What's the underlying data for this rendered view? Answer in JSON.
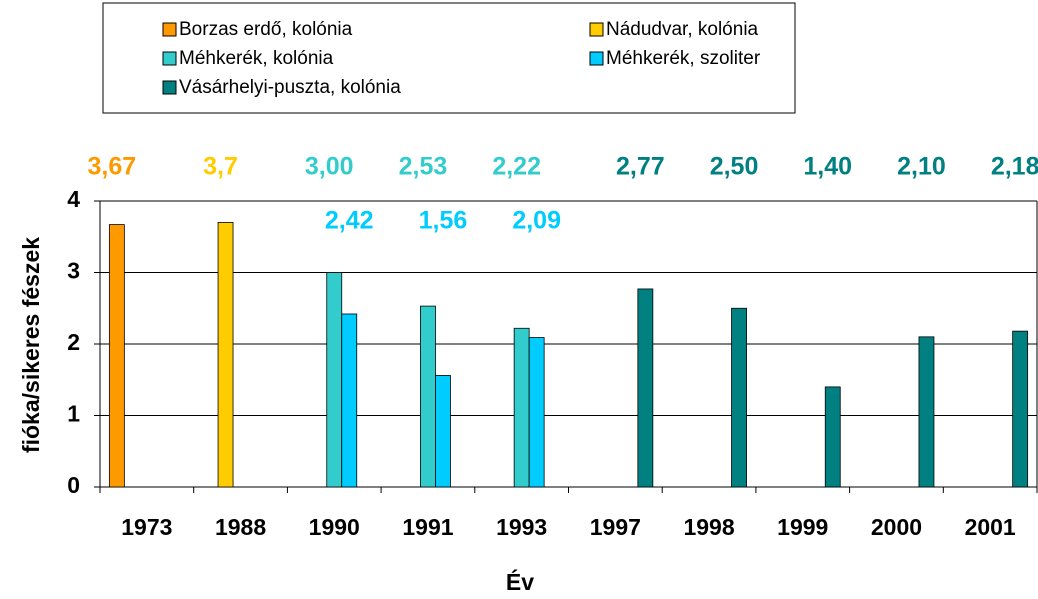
{
  "chart_data": {
    "type": "bar",
    "categories": [
      "1973",
      "1988",
      "1990",
      "1991",
      "1993",
      "1997",
      "1998",
      "1999",
      "2000",
      "2001"
    ],
    "series": [
      {
        "name": "Borzas erdő, kolónia",
        "color": "#ff9900",
        "values": [
          3.67,
          null,
          null,
          null,
          null,
          null,
          null,
          null,
          null,
          null
        ],
        "value_labels": [
          "3,67",
          null,
          null,
          null,
          null,
          null,
          null,
          null,
          null,
          null
        ]
      },
      {
        "name": "Nádudvar, kolónia",
        "color": "#ffcc00",
        "values": [
          null,
          3.7,
          null,
          null,
          null,
          null,
          null,
          null,
          null,
          null
        ],
        "value_labels": [
          null,
          "3,7",
          null,
          null,
          null,
          null,
          null,
          null,
          null,
          null
        ]
      },
      {
        "name": "Méhkerék, kolónia",
        "color": "#33cccc",
        "values": [
          null,
          null,
          3.0,
          2.53,
          2.22,
          null,
          null,
          null,
          null,
          null
        ],
        "value_labels": [
          null,
          null,
          "3,00",
          "2,53",
          "2,22",
          null,
          null,
          null,
          null,
          null
        ]
      },
      {
        "name": "Méhkerék, szoliter",
        "color": "#00ccff",
        "values": [
          null,
          null,
          2.42,
          1.56,
          2.09,
          null,
          null,
          null,
          null,
          null
        ],
        "value_labels": [
          null,
          null,
          "2,42",
          "1,56",
          "2,09",
          null,
          null,
          null,
          null,
          null
        ]
      },
      {
        "name": "Vásárhelyi-puszta, kolónia",
        "color": "#008080",
        "values": [
          null,
          null,
          null,
          null,
          null,
          2.77,
          2.5,
          1.4,
          2.1,
          2.18
        ],
        "value_labels": [
          null,
          null,
          null,
          null,
          null,
          "2,77",
          "2,50",
          "1,40",
          "2,10",
          "2,18"
        ]
      }
    ],
    "x_label": "Év",
    "y_label": "fióka/sikeres fészek",
    "ylim": [
      0,
      4
    ],
    "yticks": [
      0,
      1,
      2,
      3,
      4
    ],
    "grid": true,
    "legend": "top"
  }
}
